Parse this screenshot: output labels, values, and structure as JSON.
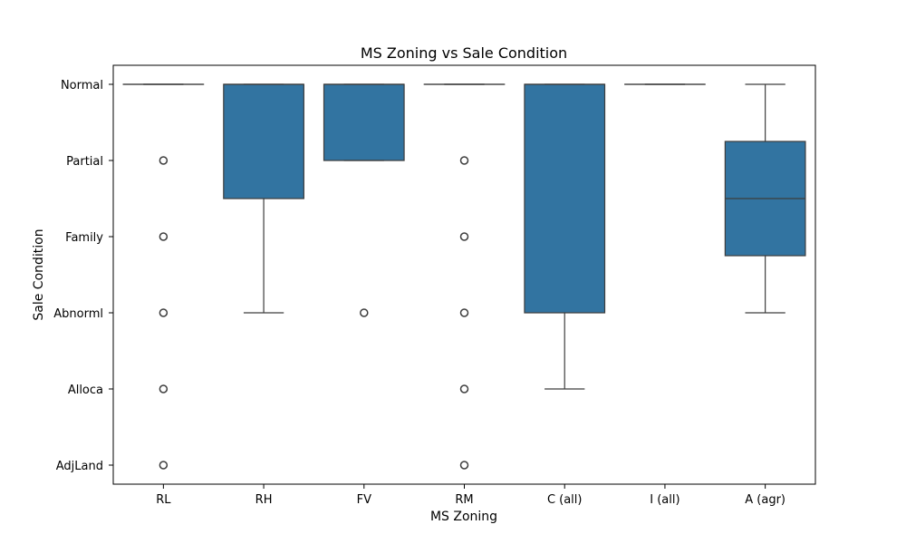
{
  "chart_data": {
    "type": "boxplot",
    "title": "MS Zoning vs Sale Condition",
    "xlabel": "MS Zoning",
    "ylabel": "Sale Condition",
    "categories": [
      "RL",
      "RH",
      "FV",
      "RM",
      "C (all)",
      "I (all)",
      "A (agr)"
    ],
    "y_categories": [
      "Normal",
      "Partial",
      "Family",
      "Abnorml",
      "Alloca",
      "AdjLand"
    ],
    "y_encoding": {
      "Normal": 0,
      "Partial": 1,
      "Family": 2,
      "Abnorml": 3,
      "Alloca": 4,
      "AdjLand": 5
    },
    "ylim": [
      -0.25,
      5.25
    ],
    "grid": false,
    "box_color": "#3274a1",
    "boxes": [
      {
        "category": "RL",
        "whisker_low": 0,
        "q1": 0,
        "median": 0,
        "q3": 0,
        "whisker_high": 0,
        "outliers": [
          1,
          2,
          3,
          4,
          5
        ]
      },
      {
        "category": "RH",
        "whisker_low": 0,
        "q1": 0,
        "median": 0,
        "q3": 1.5,
        "whisker_high": 3,
        "outliers": []
      },
      {
        "category": "FV",
        "whisker_low": 0,
        "q1": 0,
        "median": 0,
        "q3": 1,
        "whisker_high": 1,
        "outliers": [
          3
        ]
      },
      {
        "category": "RM",
        "whisker_low": 0,
        "q1": 0,
        "median": 0,
        "q3": 0,
        "whisker_high": 0,
        "outliers": [
          1,
          2,
          3,
          4,
          5
        ]
      },
      {
        "category": "C (all)",
        "whisker_low": 0,
        "q1": 0,
        "median": 0,
        "q3": 3,
        "whisker_high": 4,
        "outliers": []
      },
      {
        "category": "I (all)",
        "whisker_low": 0,
        "q1": 0,
        "median": 0,
        "q3": 0,
        "whisker_high": 0,
        "outliers": []
      },
      {
        "category": "A (agr)",
        "whisker_low": 0,
        "q1": 0.75,
        "median": 1.5,
        "q3": 2.25,
        "whisker_high": 3,
        "outliers": []
      }
    ]
  }
}
